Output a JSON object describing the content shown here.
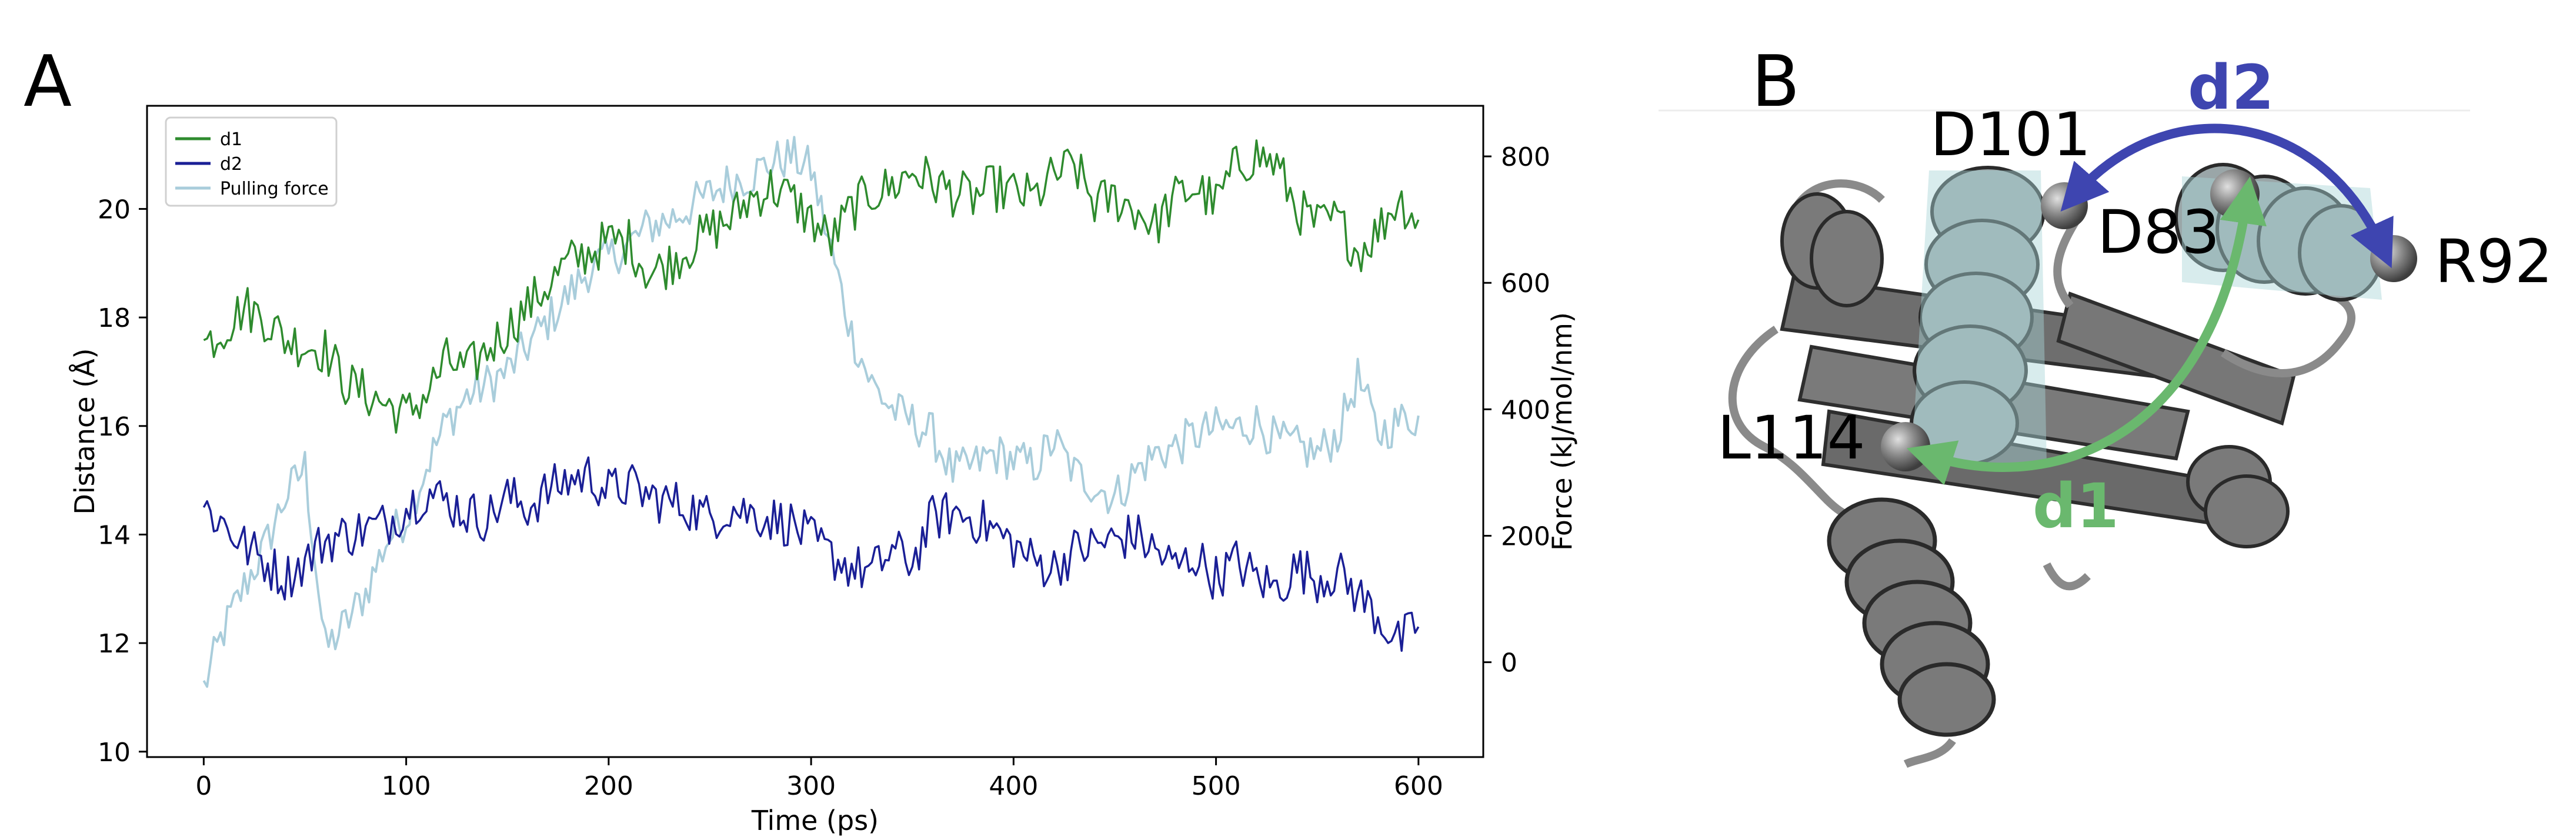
{
  "panels": {
    "a": "A",
    "b": "B"
  },
  "chart_data": {
    "type": "line",
    "xlabel": "Time (ps)",
    "ylabel": "Distance (Å)",
    "y2label": "Force (kJ/mol/nm)",
    "xlim": [
      -28,
      632
    ],
    "ylim": [
      9.9,
      21.9
    ],
    "y2lim": [
      -150,
      880
    ],
    "xticks": [
      0,
      100,
      200,
      300,
      400,
      500,
      600
    ],
    "yticks": [
      10,
      12,
      14,
      16,
      18,
      20
    ],
    "y2ticks": [
      0,
      200,
      400,
      600,
      800
    ],
    "legend_position": "top-left",
    "colors": {
      "d1": "#2e8b2e",
      "d2": "#1a1f96",
      "force": "#a9cddb"
    },
    "series": [
      {
        "name": "d1",
        "axis": "left",
        "x": [
          0,
          10,
          20,
          30,
          40,
          50,
          60,
          70,
          80,
          90,
          100,
          110,
          120,
          130,
          140,
          150,
          160,
          170,
          180,
          190,
          200,
          210,
          220,
          230,
          240,
          250,
          260,
          270,
          280,
          290,
          300,
          310,
          320,
          330,
          340,
          350,
          360,
          370,
          380,
          390,
          400,
          410,
          420,
          430,
          440,
          450,
          460,
          470,
          480,
          490,
          500,
          510,
          520,
          530,
          540,
          550,
          560,
          570,
          580,
          590,
          600
        ],
        "values": [
          17.5,
          17.8,
          18.2,
          18.0,
          17.6,
          17.5,
          17.4,
          16.8,
          16.6,
          16.4,
          16.2,
          16.6,
          17.2,
          17.0,
          17.4,
          17.8,
          18.2,
          18.6,
          19.0,
          19.2,
          19.4,
          19.4,
          18.8,
          19.0,
          19.3,
          19.6,
          19.8,
          20.2,
          20.4,
          20.2,
          19.8,
          19.4,
          20.0,
          20.3,
          20.4,
          20.7,
          20.5,
          20.3,
          20.2,
          20.4,
          20.3,
          20.2,
          20.6,
          20.8,
          20.1,
          20.2,
          20.0,
          19.7,
          20.2,
          20.4,
          20.1,
          20.8,
          21.0,
          20.8,
          20.0,
          19.7,
          19.8,
          19.2,
          19.6,
          20.2,
          19.8
        ]
      },
      {
        "name": "d2",
        "axis": "left",
        "x": [
          0,
          10,
          20,
          30,
          40,
          50,
          60,
          70,
          80,
          90,
          100,
          110,
          120,
          130,
          140,
          150,
          160,
          170,
          180,
          190,
          200,
          210,
          220,
          230,
          240,
          250,
          260,
          270,
          280,
          290,
          300,
          310,
          320,
          330,
          340,
          350,
          360,
          370,
          380,
          390,
          400,
          410,
          420,
          430,
          440,
          450,
          460,
          470,
          480,
          490,
          500,
          510,
          520,
          530,
          540,
          550,
          560,
          570,
          580,
          590,
          600
        ],
        "values": [
          14.5,
          14.2,
          13.8,
          13.5,
          13.2,
          13.5,
          13.9,
          14.0,
          14.1,
          14.2,
          14.5,
          14.8,
          14.6,
          14.4,
          14.3,
          14.7,
          14.5,
          14.8,
          15.0,
          15.1,
          14.8,
          14.9,
          14.7,
          14.6,
          14.5,
          14.3,
          14.5,
          14.4,
          14.3,
          14.2,
          13.9,
          13.6,
          13.4,
          13.3,
          13.7,
          13.5,
          14.3,
          14.4,
          14.3,
          14.1,
          13.8,
          13.5,
          13.4,
          13.7,
          13.8,
          13.9,
          14.0,
          13.7,
          13.4,
          13.6,
          13.2,
          13.5,
          13.2,
          13.0,
          13.4,
          13.2,
          13.3,
          12.9,
          12.5,
          12.0,
          12.3
        ]
      },
      {
        "name": "Pulling force",
        "axis": "right",
        "x": [
          0,
          10,
          20,
          30,
          40,
          50,
          60,
          70,
          80,
          90,
          100,
          110,
          120,
          130,
          140,
          150,
          160,
          170,
          180,
          190,
          200,
          210,
          220,
          230,
          240,
          250,
          260,
          270,
          280,
          290,
          300,
          310,
          320,
          330,
          340,
          350,
          360,
          370,
          380,
          390,
          400,
          410,
          420,
          430,
          440,
          450,
          460,
          470,
          480,
          490,
          500,
          510,
          520,
          530,
          540,
          550,
          560,
          570,
          580,
          590,
          600
        ],
        "values": [
          -40,
          50,
          120,
          180,
          260,
          310,
          20,
          60,
          110,
          190,
          230,
          310,
          380,
          420,
          440,
          460,
          500,
          540,
          580,
          620,
          640,
          660,
          690,
          700,
          720,
          740,
          760,
          770,
          790,
          800,
          780,
          650,
          520,
          440,
          400,
          380,
          360,
          300,
          310,
          330,
          320,
          310,
          350,
          300,
          280,
          260,
          300,
          330,
          340,
          360,
          370,
          370,
          380,
          350,
          340,
          330,
          360,
          450,
          360,
          380,
          390
        ]
      }
    ]
  },
  "molecule": {
    "residues": {
      "d101": "D101",
      "d83": "D83",
      "r92": "R92",
      "l114": "L114"
    },
    "distances": {
      "d1": "d1",
      "d2": "d2"
    },
    "colors": {
      "d1": "#6ab86e",
      "d2": "#3e45b0",
      "protein": "#6e6e6e",
      "helix_highlight": "#a8d4d8"
    }
  }
}
